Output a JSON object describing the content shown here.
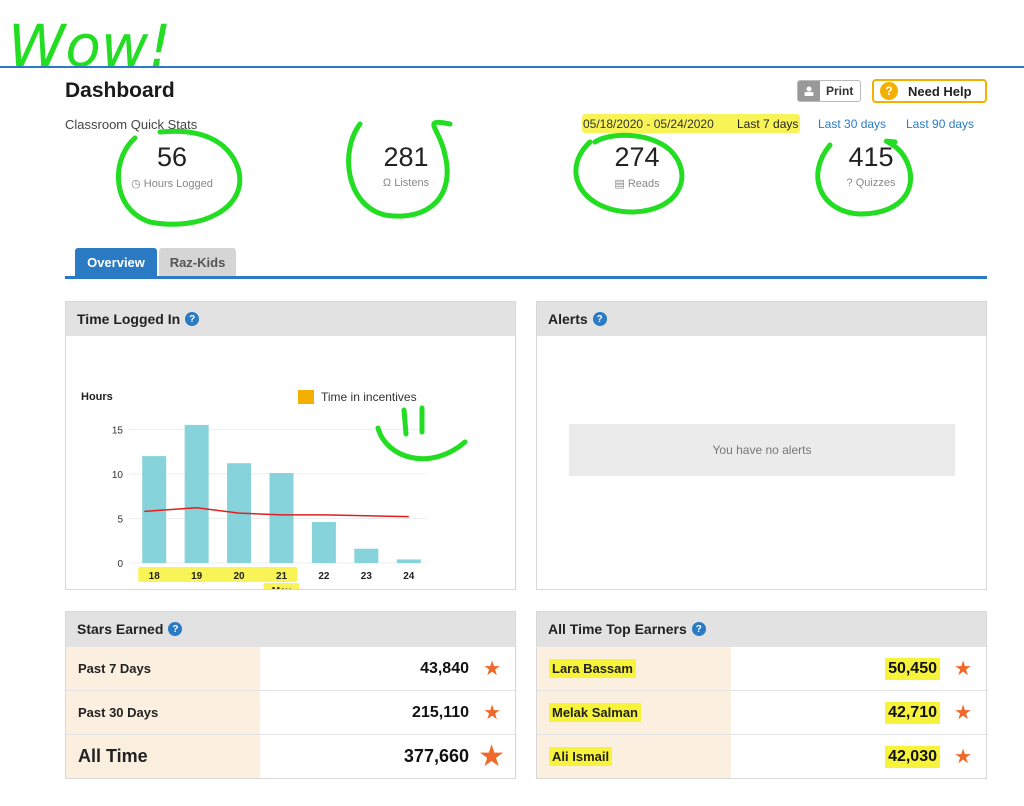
{
  "annotations": {
    "wow": "Wow!"
  },
  "header": {
    "title": "Dashboard",
    "subtitle": "Classroom Quick Stats",
    "print_label": "Print",
    "help_label": "Need Help",
    "date_range": "05/18/2020 - 05/24/2020",
    "ranges": [
      "Last 7 days",
      "Last 30 days",
      "Last 90 days"
    ]
  },
  "stats": [
    {
      "value": "56",
      "label": "Hours Logged",
      "icon": "clock-icon"
    },
    {
      "value": "281",
      "label": "Listens",
      "icon": "headphones-icon"
    },
    {
      "value": "274",
      "label": "Reads",
      "icon": "book-icon"
    },
    {
      "value": "415",
      "label": "Quizzes",
      "icon": "question-icon"
    }
  ],
  "tabs": [
    "Overview",
    "Raz-Kids"
  ],
  "time_panel": {
    "title": "Time Logged In",
    "chart_data": {
      "type": "bar",
      "ylabel": "Hours",
      "categories": [
        "18",
        "19",
        "20",
        "21",
        "22",
        "23",
        "24"
      ],
      "month_label": "May",
      "values": [
        12,
        15.5,
        11.2,
        10.1,
        4.6,
        1.6,
        0.4
      ],
      "line_values": [
        5.8,
        6.2,
        5.6,
        5.4,
        5.4,
        5.3,
        5.2
      ],
      "legend": "Time in incentives",
      "yticks": [
        0,
        5,
        10,
        15
      ],
      "ylim": [
        0,
        16.5
      ],
      "bar_color": "#86d3dc",
      "line_color": "#e02020"
    }
  },
  "alerts": {
    "title": "Alerts",
    "empty_text": "You have no alerts"
  },
  "stars": {
    "title": "Stars Earned",
    "rows": [
      {
        "label": "Past 7 Days",
        "value": "43,840"
      },
      {
        "label": "Past 30 Days",
        "value": "215,110"
      },
      {
        "label": "All Time",
        "value": "377,660"
      }
    ]
  },
  "top_earners": {
    "title": "All Time Top Earners",
    "rows": [
      {
        "name": "Lara Bassam",
        "value": "50,450"
      },
      {
        "name": "Melak Salman",
        "value": "42,710"
      },
      {
        "name": "Ali Ismail",
        "value": "42,030"
      }
    ]
  },
  "colors": {
    "accent": "#2b7bc4",
    "help": "#f4b000",
    "star": "#f0692a",
    "ink": "#22dd22",
    "highlight": "#f7f23a"
  }
}
